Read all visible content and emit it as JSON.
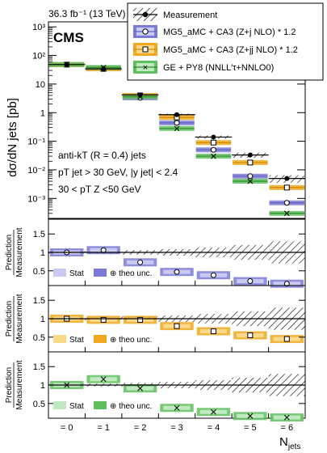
{
  "header": {
    "lumi": "36.3 fb⁻¹ (13 TeV)",
    "experiment": "CMS"
  },
  "colors": {
    "mg5_zj": "#7b7bd6",
    "mg5_zj_stat": "#c9c9f2",
    "mg5_zjj": "#f0a81e",
    "mg5_zjj_stat": "#fbd98a",
    "ge_py8": "#5fbf5f",
    "ge_py8_stat": "#bfe9bf",
    "measurement_hatch": "#000000"
  },
  "legend": {
    "items": [
      {
        "key": "data",
        "label": "Measurement"
      },
      {
        "key": "mg5_zj",
        "label": "MG5_aMC + CA3 (Z+j NLO) * 1.2"
      },
      {
        "key": "mg5_zjj",
        "label": "MG5_aMC + CA3 (Z+jj NLO) * 1.2"
      },
      {
        "key": "ge_py8",
        "label": "GE + PY8 (NNLL′τ+NNLO0)"
      }
    ]
  },
  "annotations": {
    "line1": "anti-kT (R = 0.4) jets",
    "line2": "pT jet > 30 GeV, |y jet| < 2.4",
    "line3": "30 <  pT Z <50 GeV"
  },
  "ratio_panels": [
    {
      "ylabel_top": "Prediction",
      "ylabel_bottom": "Measurement",
      "stat_label": "Stat",
      "theo_label": "⊕ theo unc."
    },
    {
      "ylabel_top": "Prediction",
      "ylabel_bottom": "Measurement",
      "stat_label": "Stat",
      "theo_label": "⊕ theo unc."
    },
    {
      "ylabel_top": "Prediction",
      "ylabel_bottom": "Measurement",
      "stat_label": "Stat",
      "theo_label": "⊕ theo unc."
    }
  ],
  "chart_data": {
    "type": "bar",
    "title": "",
    "categories": [
      "= 0",
      "= 1",
      "= 2",
      "= 3",
      "= 4",
      "= 5",
      "= 6"
    ],
    "xlabel": "N jets",
    "ylabel": "dσ/dN jets [pb]",
    "ylim": [
      0.0002,
      1500
    ],
    "yscale": "log",
    "y_ticks": [
      "10³",
      "10²",
      "10",
      "1",
      "10⁻¹",
      "10⁻²",
      "10⁻³"
    ],
    "ratio_ylim": [
      0.1,
      1.9
    ],
    "ratio_ticks": [
      "0.5",
      "1",
      "1.5"
    ],
    "series": [
      {
        "name": "Measurement",
        "values": [
          48,
          34,
          4.2,
          0.85,
          0.14,
          0.033,
          0.005
        ],
        "rel_unc": [
          0.04,
          0.04,
          0.06,
          0.09,
          0.13,
          0.2,
          0.3
        ]
      },
      {
        "name": "MG5_aMC + CA3 (Z+j NLO) * 1.2",
        "values": [
          48,
          36,
          3.3,
          0.44,
          0.05,
          0.006,
          0.0007
        ],
        "ratio": [
          1.0,
          1.06,
          0.73,
          0.47,
          0.38,
          0.22,
          0.15
        ]
      },
      {
        "name": "MG5_aMC + CA3 (Z+jj NLO) * 1.2",
        "values": [
          48,
          34,
          4.0,
          0.68,
          0.09,
          0.018,
          0.0024
        ],
        "ratio": [
          1.0,
          0.97,
          0.97,
          0.8,
          0.66,
          0.55,
          0.45
        ]
      },
      {
        "name": "GE + PY8 (NNLL′τ+NNLO0)",
        "values": [
          48,
          38,
          3.6,
          0.28,
          0.03,
          0.004,
          0.0003
        ],
        "ratio": [
          1.0,
          1.16,
          0.91,
          0.38,
          0.27,
          0.16,
          0.12
        ]
      }
    ]
  }
}
